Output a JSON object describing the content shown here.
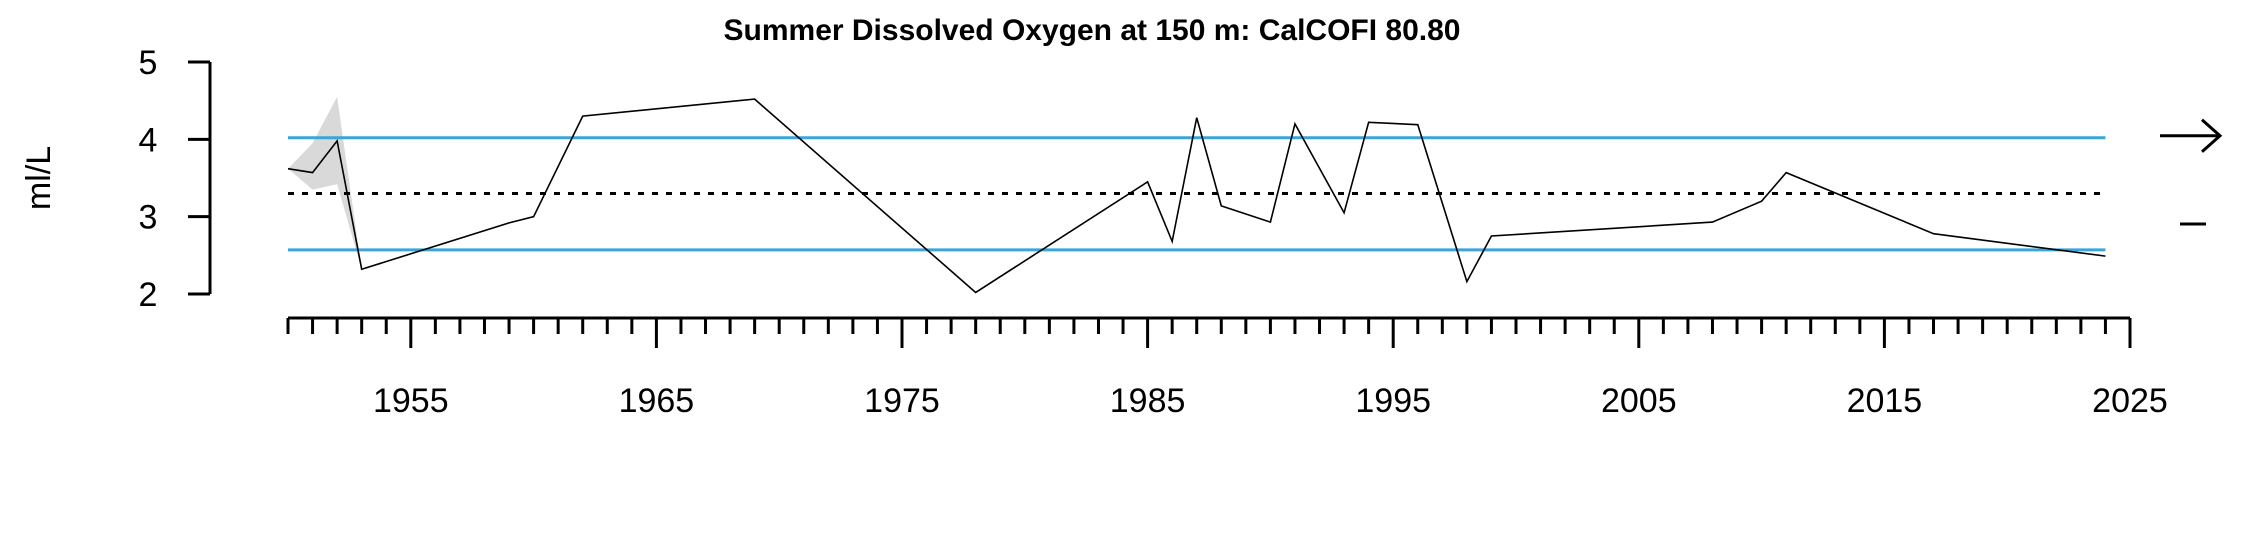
{
  "chart_data": {
    "type": "line",
    "title": "Summer Dissolved Oxygen at 150 m: CalCOFI 80.80",
    "ylabel": "ml/L",
    "xlim": [
      1950,
      2025
    ],
    "ylim": [
      2,
      5
    ],
    "x_ticks_major": [
      1955,
      1965,
      1975,
      1985,
      1995,
      2005,
      2015,
      2025
    ],
    "x_ticks_minor_step": 1,
    "y_ticks": [
      2,
      3,
      4,
      5
    ],
    "mean": 3.3,
    "sd_upper": 4.02,
    "sd_lower": 2.57,
    "trend_indicator": "arrow-right",
    "mean_indicator": "dash",
    "series": [
      {
        "x": [
          1950,
          1951,
          1952,
          1953,
          1959,
          1960,
          1962,
          1969,
          1978,
          1985,
          1986,
          1987,
          1988,
          1990,
          1991,
          1993,
          1994,
          1996,
          1998,
          1999,
          2008,
          2010,
          2011,
          2017,
          2024
        ],
        "y": [
          3.62,
          3.57,
          3.98,
          2.32,
          2.92,
          3.0,
          4.3,
          4.52,
          2.02,
          3.45,
          2.68,
          4.28,
          3.14,
          2.93,
          4.2,
          3.05,
          4.22,
          4.19,
          2.16,
          2.75,
          2.93,
          3.2,
          3.57,
          2.78,
          2.49
        ]
      }
    ],
    "uncertainty_band": {
      "x": [
        1950,
        1951,
        1952,
        1953
      ],
      "upper": [
        3.62,
        3.95,
        4.55,
        2.32
      ],
      "lower": [
        3.62,
        3.35,
        3.42,
        2.32
      ]
    }
  }
}
